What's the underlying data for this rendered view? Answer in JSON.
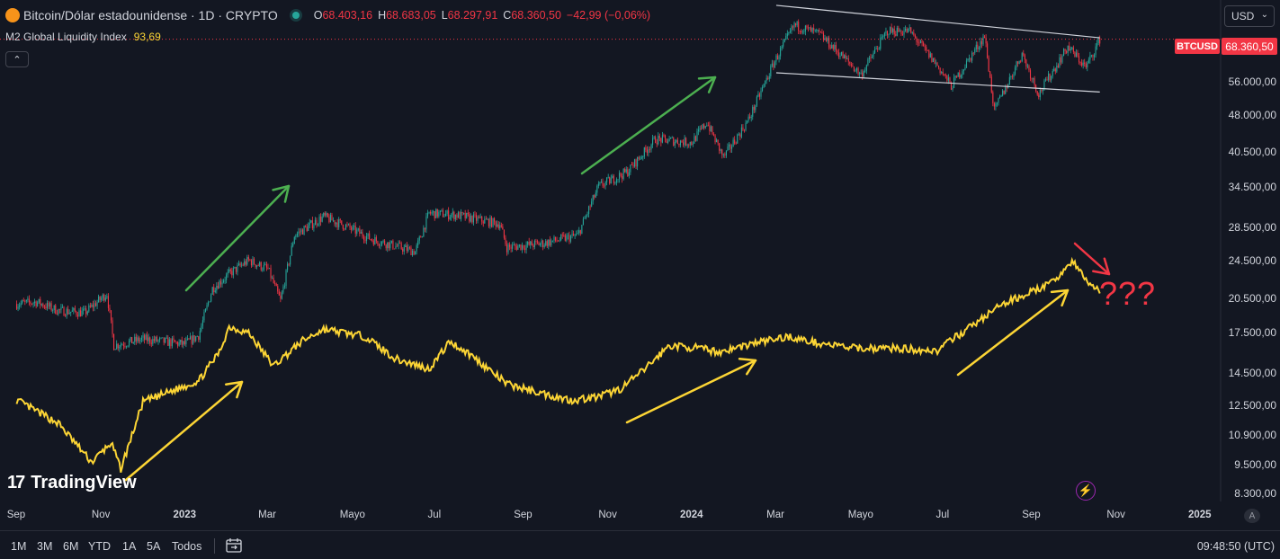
{
  "header": {
    "symbol_title": "Bitcoin/Dólar estadounidense · 1D · CRYPTO",
    "btc_logo_glyph": "₿",
    "ohlc": {
      "o_label": "O",
      "o_value": "68.403,16",
      "h_label": "H",
      "h_value": "68.683,05",
      "l_label": "L",
      "l_value": "68.297,91",
      "c_label": "C",
      "c_value": "68.360,50",
      "change": "−42,99 (−0,06%)"
    },
    "indicator_name": "M2 Global Liquidity Index",
    "indicator_value": "93,69",
    "collapse_glyph": "⌃",
    "currency": "USD",
    "currency_chevron": "⌄"
  },
  "price_scale": {
    "ticker_tag": "BTCUSD",
    "last_price": "68.360,50",
    "ticks": [
      "56.000,00",
      "48.000,00",
      "40.500,00",
      "34.500,00",
      "28.500,00",
      "24.500,00",
      "20.500,00",
      "17.500,00",
      "14.500,00",
      "12.500,00",
      "10.900,00",
      "9.500,00",
      "8.300,00"
    ]
  },
  "time_scale": {
    "ticks": [
      "Sep",
      "Nov",
      "2023",
      "Mar",
      "Mayo",
      "Jul",
      "Sep",
      "Nov",
      "2024",
      "Mar",
      "Mayo",
      "Jul",
      "Sep",
      "Nov",
      "2025"
    ],
    "bold_ticks": [
      "2023",
      "2024",
      "2025"
    ],
    "auto_glyph": "A"
  },
  "annotations": {
    "question_marks": "???"
  },
  "branding": {
    "logo_mark": "17",
    "logo_text": "TradingView"
  },
  "bolt_glyph": "⚡",
  "bottom_bar": {
    "ranges": [
      "1M",
      "3M",
      "6M",
      "YTD",
      "1A",
      "5A",
      "Todos"
    ],
    "clock": "09:48:50 (UTC)"
  },
  "colors": {
    "background": "#131722",
    "candle_up": "#26a69a",
    "candle_down": "#f23645",
    "m2_line": "#fcd535",
    "green_arrow": "#4caf50",
    "yellow_arrow": "#fcd535",
    "red_arrow": "#f23645",
    "channel_line": "#d1d4dc"
  },
  "chart_data": {
    "type": "line",
    "scale": "log",
    "series": [
      {
        "name": "Bitcoin/Dólar estadounidense",
        "style": "candlestick",
        "points": [
          [
            "2022-09-01",
            20000
          ],
          [
            "2022-09-15",
            20200
          ],
          [
            "2022-10-01",
            19400
          ],
          [
            "2022-10-20",
            19200
          ],
          [
            "2022-11-05",
            21000
          ],
          [
            "2022-11-10",
            16500
          ],
          [
            "2022-12-01",
            17000
          ],
          [
            "2022-12-31",
            16600
          ],
          [
            "2023-01-10",
            17300
          ],
          [
            "2023-01-20",
            21500
          ],
          [
            "2023-02-01",
            23000
          ],
          [
            "2023-02-15",
            24500
          ],
          [
            "2023-03-01",
            23500
          ],
          [
            "2023-03-10",
            20300
          ],
          [
            "2023-03-20",
            27500
          ],
          [
            "2023-04-10",
            30000
          ],
          [
            "2023-04-25",
            28800
          ],
          [
            "2023-05-15",
            27000
          ],
          [
            "2023-06-15",
            25500
          ],
          [
            "2023-06-25",
            30500
          ],
          [
            "2023-07-15",
            30200
          ],
          [
            "2023-08-15",
            29000
          ],
          [
            "2023-08-20",
            26000
          ],
          [
            "2023-09-15",
            26500
          ],
          [
            "2023-10-10",
            27500
          ],
          [
            "2023-10-25",
            34500
          ],
          [
            "2023-11-15",
            37000
          ],
          [
            "2023-12-05",
            43000
          ],
          [
            "2023-12-31",
            42300
          ],
          [
            "2024-01-11",
            46500
          ],
          [
            "2024-01-23",
            39500
          ],
          [
            "2024-02-10",
            47000
          ],
          [
            "2024-02-28",
            61000
          ],
          [
            "2024-03-14",
            73000
          ],
          [
            "2024-04-01",
            70000
          ],
          [
            "2024-04-18",
            63000
          ],
          [
            "2024-05-01",
            58000
          ],
          [
            "2024-05-20",
            71000
          ],
          [
            "2024-06-05",
            71000
          ],
          [
            "2024-06-25",
            60500
          ],
          [
            "2024-07-05",
            55000
          ],
          [
            "2024-07-29",
            69500
          ],
          [
            "2024-08-05",
            49000
          ],
          [
            "2024-08-25",
            64000
          ],
          [
            "2024-09-06",
            53000
          ],
          [
            "2024-09-27",
            66000
          ],
          [
            "2024-10-10",
            60000
          ],
          [
            "2024-10-20",
            68360
          ]
        ]
      },
      {
        "name": "M2 Global Liquidity Index",
        "points": [
          [
            "2022-09-01",
            12800
          ],
          [
            "2022-10-01",
            11500
          ],
          [
            "2022-10-25",
            9600
          ],
          [
            "2022-11-08",
            10500
          ],
          [
            "2022-11-15",
            9300
          ],
          [
            "2022-12-01",
            12700
          ],
          [
            "2023-01-10",
            14000
          ],
          [
            "2023-01-25",
            16000
          ],
          [
            "2023-02-01",
            18000
          ],
          [
            "2023-02-15",
            17500
          ],
          [
            "2023-03-05",
            15000
          ],
          [
            "2023-03-25",
            16800
          ],
          [
            "2023-04-10",
            17800
          ],
          [
            "2023-05-10",
            17200
          ],
          [
            "2023-06-01",
            15500
          ],
          [
            "2023-06-25",
            14800
          ],
          [
            "2023-07-10",
            16800
          ],
          [
            "2023-07-25",
            15800
          ],
          [
            "2023-08-20",
            13800
          ],
          [
            "2023-09-15",
            13200
          ],
          [
            "2023-10-05",
            12800
          ],
          [
            "2023-10-25",
            13000
          ],
          [
            "2023-11-10",
            13500
          ],
          [
            "2023-11-25",
            14600
          ],
          [
            "2023-12-15",
            16500
          ],
          [
            "2024-01-05",
            16300
          ],
          [
            "2024-01-20",
            16000
          ],
          [
            "2024-02-15",
            16700
          ],
          [
            "2024-03-10",
            17200
          ],
          [
            "2024-03-25",
            16800
          ],
          [
            "2024-04-25",
            16300
          ],
          [
            "2024-05-25",
            16300
          ],
          [
            "2024-06-25",
            16100
          ],
          [
            "2024-07-10",
            17300
          ],
          [
            "2024-07-25",
            18500
          ],
          [
            "2024-08-10",
            19900
          ],
          [
            "2024-08-25",
            20800
          ],
          [
            "2024-09-15",
            22000
          ],
          [
            "2024-09-30",
            24400
          ],
          [
            "2024-10-12",
            22000
          ],
          [
            "2024-10-20",
            21300
          ]
        ]
      }
    ],
    "ylim": [
      8000,
      82000
    ],
    "xlim": [
      "2022-08-20",
      "2025-01-15"
    ],
    "channel": {
      "upper": [
        [
          "2024-03-01",
          80000
        ],
        [
          "2024-10-20",
          68800
        ]
      ],
      "lower": [
        [
          "2024-03-01",
          58500
        ],
        [
          "2024-10-20",
          53500
        ]
      ]
    },
    "last_price": 68360.5
  }
}
